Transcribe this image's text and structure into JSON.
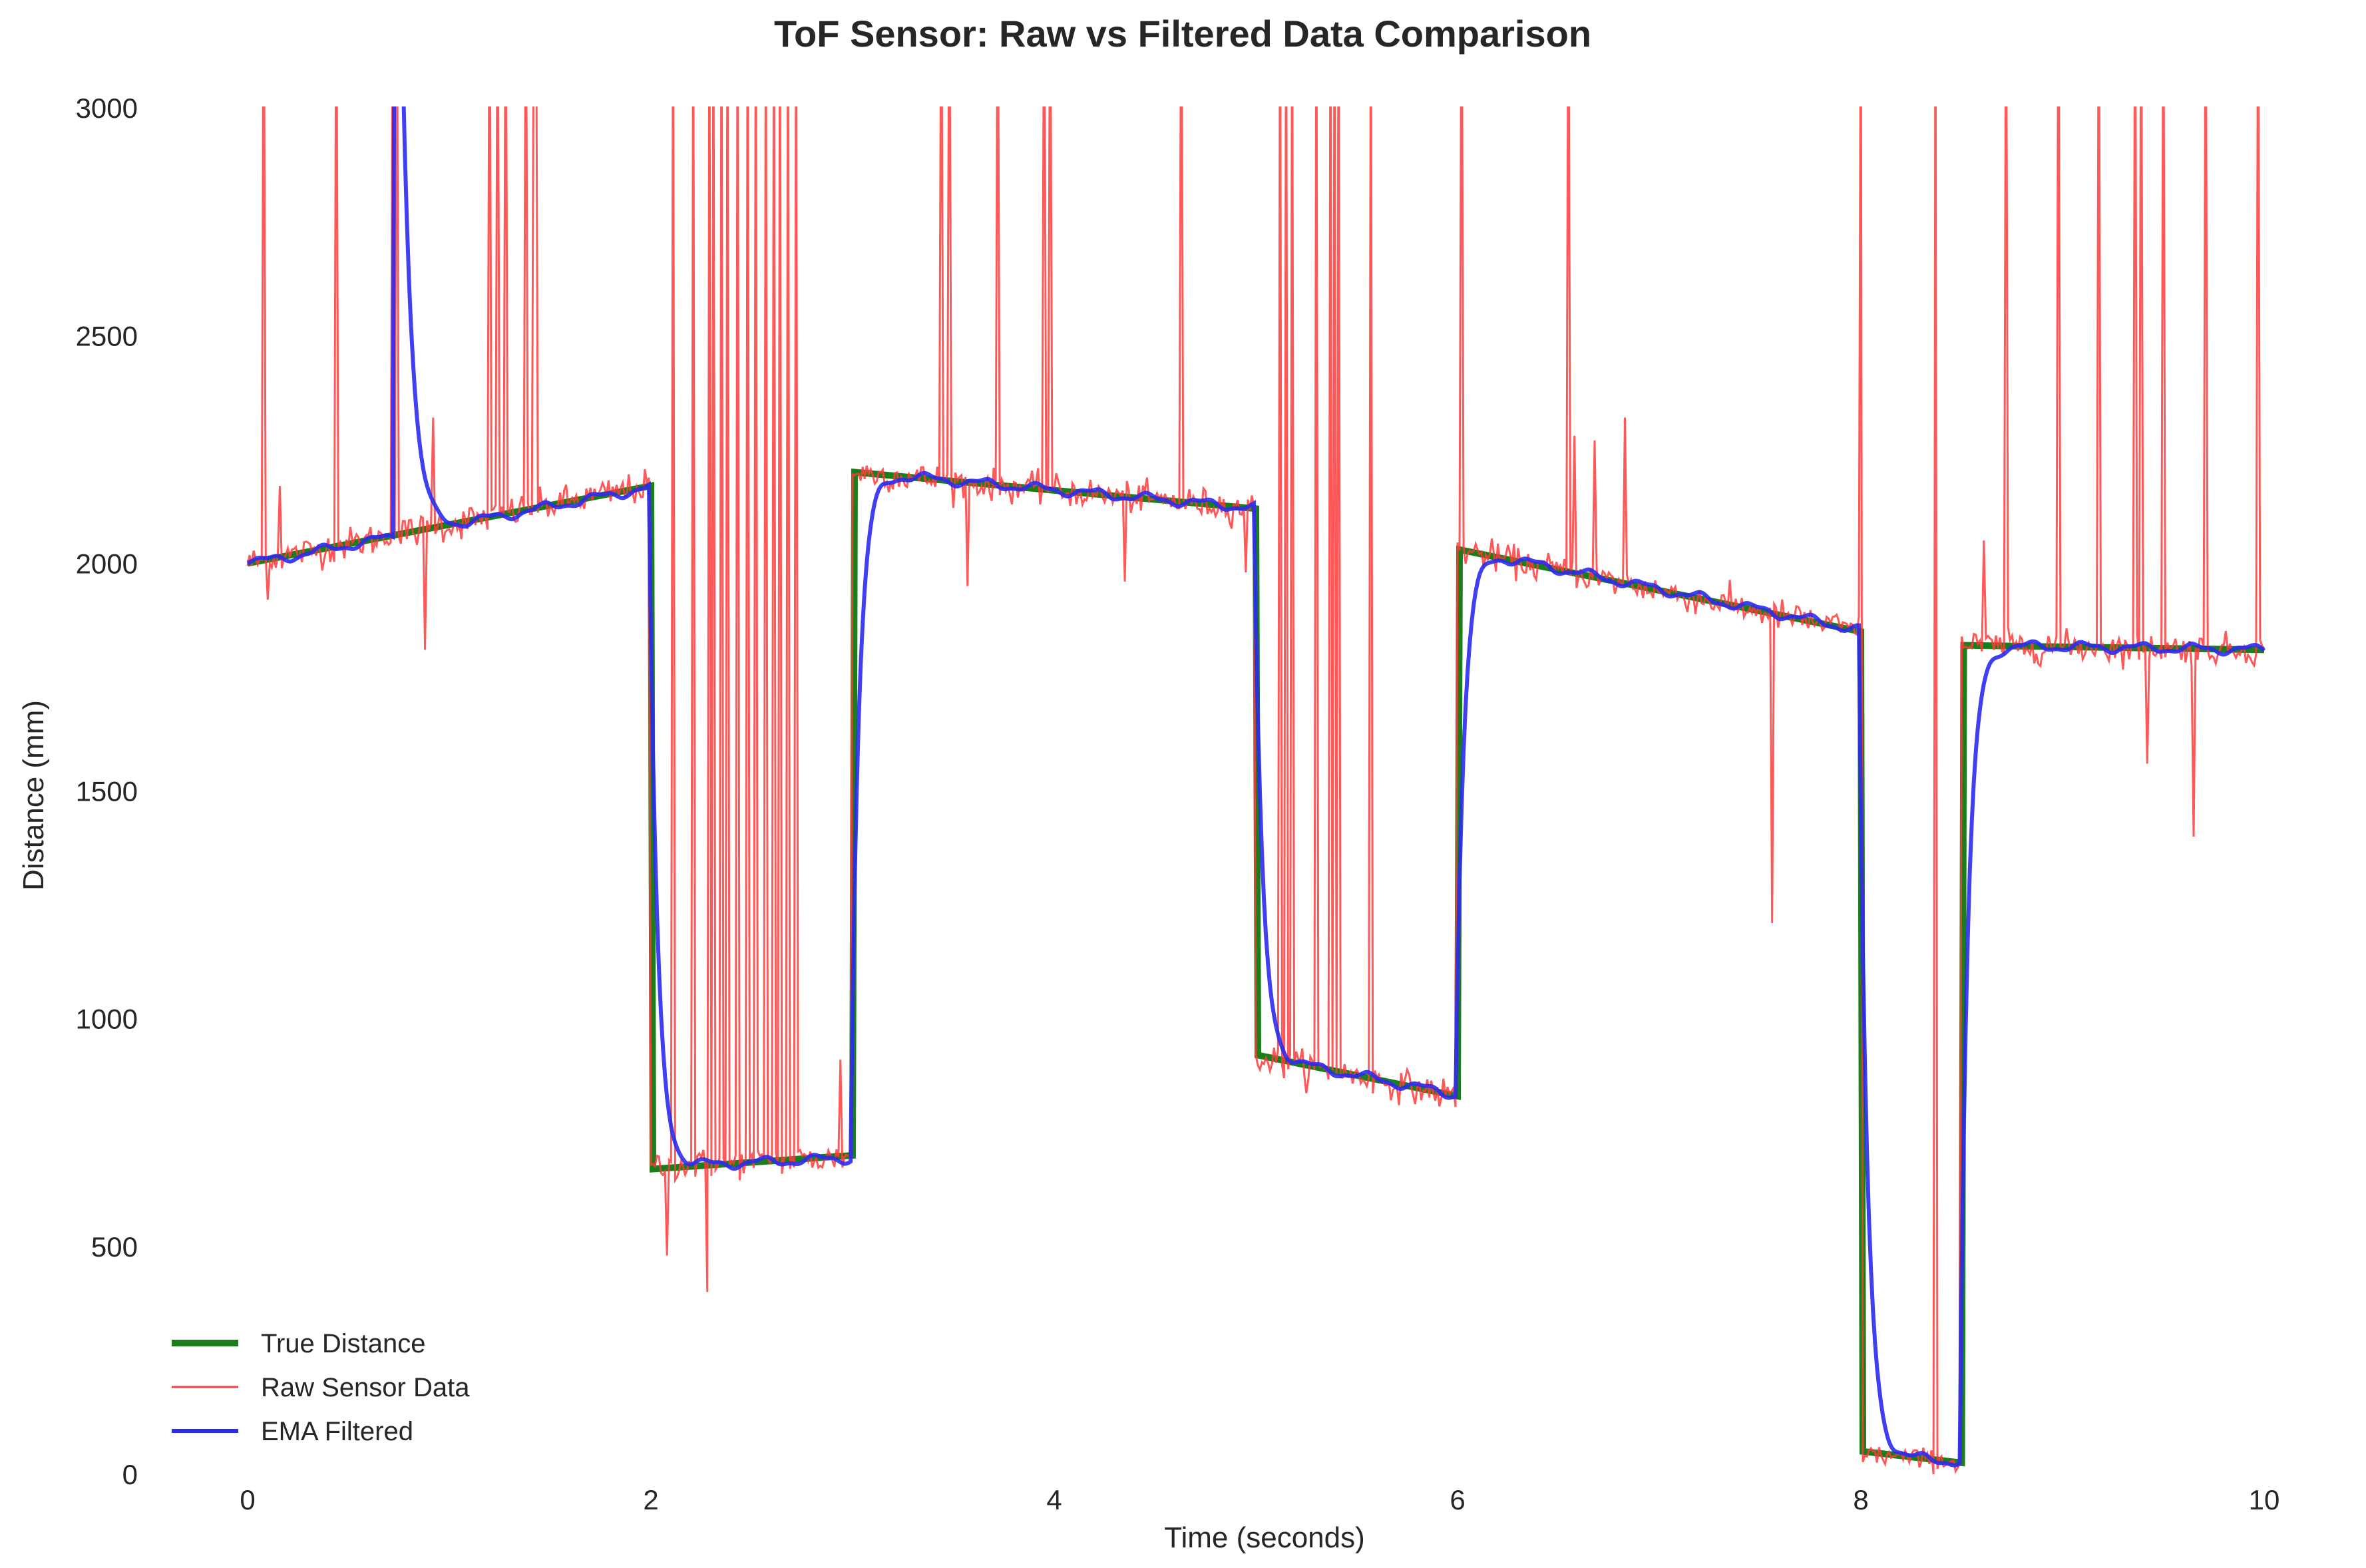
{
  "chart_data": {
    "type": "line",
    "title": "ToF Sensor: Raw vs Filtered Data Comparison",
    "xlabel": "Time (seconds)",
    "ylabel": "Distance (mm)",
    "xlim": [
      -0.5,
      10.3
    ],
    "ylim": [
      0,
      3000
    ],
    "xticks": [
      0,
      2,
      4,
      6,
      8,
      10
    ],
    "xtick_labels": [
      "0",
      "2",
      "4",
      "6",
      "8",
      "10"
    ],
    "yticks": [
      0,
      500,
      1000,
      1500,
      2000,
      2500,
      3000
    ],
    "ytick_labels": [
      "0",
      "500",
      "1000",
      "1500",
      "2000",
      "2500",
      "3000"
    ],
    "grid": false,
    "legend_position": "lower-left",
    "legend": [
      "True Distance",
      "Raw Sensor Data",
      "EMA Filtered"
    ],
    "colors": {
      "true": "#1a7f1a",
      "raw": "#ff3b3b",
      "ema": "#2b2bf0"
    },
    "series": [
      {
        "name": "True Distance",
        "points": [
          [
            0,
            2000
          ],
          [
            2,
            2170
          ],
          [
            2.01,
            670
          ],
          [
            3,
            700
          ],
          [
            3.01,
            2200
          ],
          [
            5,
            2120
          ],
          [
            5.01,
            920
          ],
          [
            6,
            830
          ],
          [
            6.01,
            2030
          ],
          [
            8,
            1850
          ],
          [
            8.01,
            50
          ],
          [
            8.5,
            25
          ],
          [
            8.51,
            1820
          ],
          [
            10,
            1810
          ]
        ]
      },
      {
        "name": "Raw Sensor Data",
        "segments": [
          {
            "t0": 0,
            "t1": 2,
            "v0": 2000,
            "v1": 2170,
            "noise": 30
          },
          {
            "t0": 2,
            "t1": 3,
            "v0": 675,
            "v1": 695,
            "noise": 28
          },
          {
            "t0": 3,
            "t1": 5,
            "v0": 2200,
            "v1": 2120,
            "noise": 28
          },
          {
            "t0": 5,
            "t1": 6,
            "v0": 915,
            "v1": 830,
            "noise": 28
          },
          {
            "t0": 6,
            "t1": 8,
            "v0": 2030,
            "v1": 1850,
            "noise": 28
          },
          {
            "t0": 8,
            "t1": 8.5,
            "v0": 45,
            "v1": 25,
            "noise": 20
          },
          {
            "t0": 8.5,
            "t1": 10,
            "v0": 1820,
            "v1": 1810,
            "noise": 28
          }
        ],
        "spikes_to_3000": [
          0.08,
          0.44,
          0.72,
          0.74,
          1.2,
          1.24,
          1.28,
          1.38,
          1.42,
          1.43,
          2.11,
          2.21,
          2.29,
          2.31,
          2.35,
          2.38,
          2.43,
          2.48,
          2.52,
          2.57,
          2.61,
          2.64,
          2.68,
          2.72,
          3.44,
          3.48,
          3.72,
          3.95,
          3.98,
          4.63,
          5.12,
          5.15,
          5.18,
          5.3,
          5.37,
          5.39,
          5.41,
          5.57,
          6.02,
          6.55,
          8.0,
          8.37,
          8.72,
          8.98,
          9.18,
          9.36,
          9.39,
          9.5,
          9.71,
          9.97
        ],
        "outliers": [
          [
            0.1,
            1920
          ],
          [
            0.16,
            2170
          ],
          [
            0.88,
            1810
          ],
          [
            0.92,
            2320
          ],
          [
            2.08,
            480
          ],
          [
            2.28,
            400
          ],
          [
            2.94,
            910
          ],
          [
            3.57,
            1950
          ],
          [
            4.35,
            1960
          ],
          [
            4.63,
            2000
          ],
          [
            4.95,
            1980
          ],
          [
            6.58,
            2280
          ],
          [
            6.68,
            2270
          ],
          [
            6.83,
            2320
          ],
          [
            7.56,
            1210
          ],
          [
            9.42,
            1560
          ],
          [
            9.65,
            1400
          ],
          [
            8.93,
            1840
          ],
          [
            8.61,
            2050
          ]
        ]
      },
      {
        "name": "EMA Filtered",
        "tau": 0.035,
        "spike_event": {
          "t_start": 0.73,
          "t_end": 0.75,
          "value": 3000,
          "decay_to": 2110,
          "tau": 0.045
        }
      }
    ]
  }
}
